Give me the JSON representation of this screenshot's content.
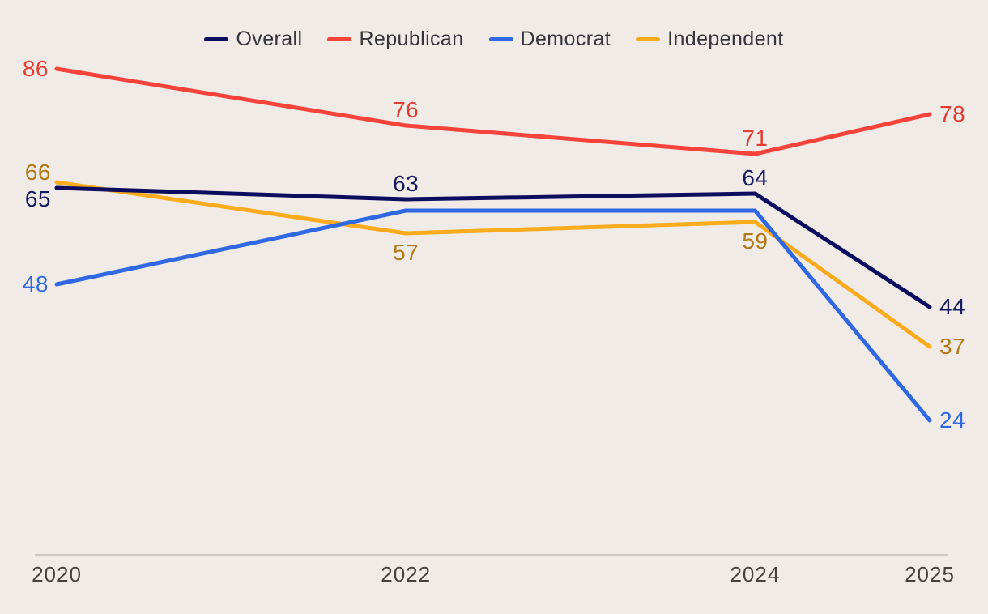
{
  "page": {
    "background_color": "#f0ebe7"
  },
  "chart_data": {
    "type": "line",
    "title": "",
    "xlabel": "",
    "ylabel": "",
    "x": [
      2020,
      2022,
      2024,
      2025
    ],
    "x_tick_labels": [
      "2020",
      "2022",
      "2024",
      "2025"
    ],
    "y_axis_visible": false,
    "grid": false,
    "legend_position": "top-center",
    "line_width": 5,
    "axis": {
      "line_color": "#cbc7c1",
      "tick_label_color": "#45423c"
    },
    "series": [
      {
        "name": "Overall",
        "color": "#0b0c5d",
        "label_color": "#161960",
        "values": [
          65,
          63,
          64,
          44
        ],
        "point_labels": [
          {
            "text": "65",
            "pos": "left-below"
          },
          {
            "text": "63",
            "pos": "above"
          },
          {
            "text": "64",
            "pos": "above"
          },
          {
            "text": "44",
            "pos": "right"
          }
        ]
      },
      {
        "name": "Republican",
        "color": "#f5433b",
        "label_color": "#e23c33",
        "values": [
          86,
          76,
          71,
          78
        ],
        "point_labels": [
          {
            "text": "86",
            "pos": "left"
          },
          {
            "text": "76",
            "pos": "above"
          },
          {
            "text": "71",
            "pos": "above"
          },
          {
            "text": "78",
            "pos": "right"
          }
        ]
      },
      {
        "name": "Democrat",
        "color": "#2f68e2",
        "label_color": "#2f68e2",
        "values": [
          48,
          61,
          61,
          24
        ],
        "point_labels": [
          {
            "text": "48",
            "pos": "left"
          },
          null,
          null,
          {
            "text": "24",
            "pos": "right"
          }
        ]
      },
      {
        "name": "Independent",
        "color": "#fbab1c",
        "label_color": "#b17914",
        "values": [
          66,
          57,
          59,
          37
        ],
        "point_labels": [
          {
            "text": "66",
            "pos": "left-above"
          },
          {
            "text": "57",
            "pos": "below"
          },
          {
            "text": "59",
            "pos": "below"
          },
          {
            "text": "37",
            "pos": "right"
          }
        ]
      }
    ]
  }
}
